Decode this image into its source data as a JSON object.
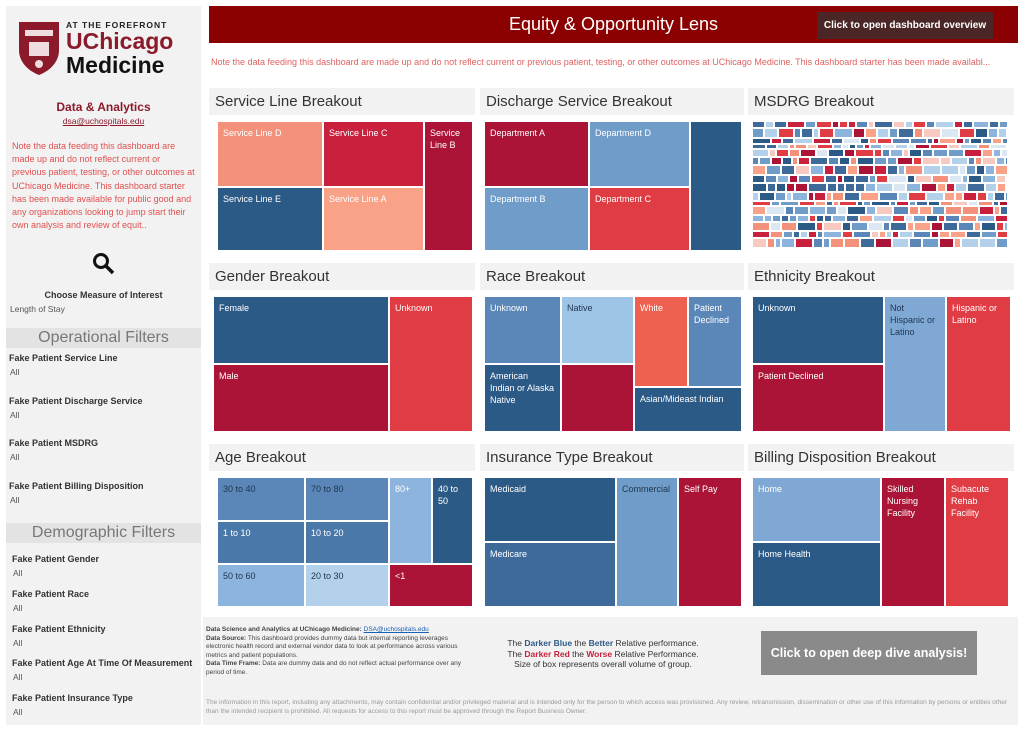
{
  "sidebar": {
    "logo": {
      "tagline": "AT THE FOREFRONT",
      "name1": "UChicago",
      "name2": "Medicine"
    },
    "team": "Data & Analytics",
    "email": "dsa@uchospitals.edu",
    "note": "Note the data feeding this dashboard are made up and do not reflect current or previous patient, testing, or other outcomes at UChicago Medicine. This dashboard starter has been made available for public good and any organizations looking to jump start their own analysis and review of equit..",
    "measure": {
      "label": "Choose Measure of Interest",
      "value": "Length of Stay"
    },
    "operational": {
      "title": "Operational Filters",
      "filters": [
        {
          "label": "Fake Patient Service Line",
          "value": "All"
        },
        {
          "label": "Fake Patient Discharge Service",
          "value": "All"
        },
        {
          "label": "Fake Patient MSDRG",
          "value": "All"
        },
        {
          "label": "Fake Patient Billing Disposition",
          "value": "All"
        }
      ]
    },
    "demographic": {
      "title": "Demographic Filters",
      "filters": [
        {
          "label": "Fake Patient Gender",
          "value": "All"
        },
        {
          "label": "Fake Patient Race",
          "value": "All"
        },
        {
          "label": "Fake Patient Ethnicity",
          "value": "All"
        },
        {
          "label": "Fake Patient Age At Time Of Measurement",
          "value": "All"
        },
        {
          "label": "Fake Patient Insurance Type",
          "value": "All"
        }
      ]
    }
  },
  "header": {
    "title": "Equity & Opportunity Lens",
    "button": "Click to open dashboard overview",
    "note": "Note the data feeding this dashboard are made up and do not reflect current or previous patient, testing, or other outcomes at UChicago Medicine. This dashboard starter has been made availabl..."
  },
  "panels": [
    {
      "title": "Service Line Breakout",
      "tiles": [
        "Service Line D",
        "Service Line C",
        "Service Line B",
        "Service Line E",
        "Service Line A"
      ]
    },
    {
      "title": "Discharge Service Breakout",
      "tiles": [
        "Department A",
        "Department D",
        "Department B",
        "Department C"
      ]
    },
    {
      "title": "MSDRG Breakout",
      "tiles": []
    },
    {
      "title": "Gender Breakout",
      "tiles": [
        "Female",
        "Male",
        "Unknown"
      ]
    },
    {
      "title": "Race Breakout",
      "tiles": [
        "Unknown",
        "Native",
        "White",
        "Patient Declined",
        "American Indian or Alaska Native",
        "Asian/Mideast Indian"
      ]
    },
    {
      "title": "Ethnicity Breakout",
      "tiles": [
        "Unknown",
        "Not Hispanic or Latino",
        "Hispanic or Latino",
        "Patient Declined"
      ]
    },
    {
      "title": "Age Breakout",
      "tiles": [
        "30 to 40",
        "70 to 80",
        "80+",
        "40 to 50",
        "1 to 10",
        "10 to 20",
        "50 to 60",
        "20 to 30",
        "<1"
      ]
    },
    {
      "title": "Insurance Type Breakout",
      "tiles": [
        "Medicaid",
        "Medicare",
        "Commercial",
        "Self Pay"
      ]
    },
    {
      "title": "Billing Disposition Breakout",
      "tiles": [
        "Home",
        "Home Health",
        "Skilled Nursing Facility",
        "Subacute Rehab Facility"
      ]
    }
  ],
  "footer": {
    "credit_label": "Data Science and Analytics at UChicago Medicine:",
    "credit_email": "DSA@uchospitals.edu",
    "source_label": "Data Source:",
    "source_text": "This dashboard provides dummy data but internal reporting leverages electronic health record and external vendor data to look at performance across various metrics and patient populations.",
    "timeframe_label": "Data Time Frame:",
    "timeframe_text": "Data are dummy data and do not reflect actual performance over any period of time.",
    "legend": {
      "line1": [
        "The ",
        "Darker Blue",
        " the ",
        "Better",
        " Relative performance."
      ],
      "line2": [
        "The ",
        "Darker Red",
        " the ",
        "Worse",
        " Relative Performance."
      ],
      "line3": "Size of box represents overall volume of group."
    },
    "button": "Click to open deep dive analysis!",
    "disclaimer": "The information in this report, including any attachments, may contain confidential and/or privileged material and is intended only for the person to which access was provisioned.   Any review, retransmission, dissemination or other use of this information by persons or entities other than the intended recipient is prohibited. All requests for access to this report must be approved through the Report Business Owner."
  }
}
